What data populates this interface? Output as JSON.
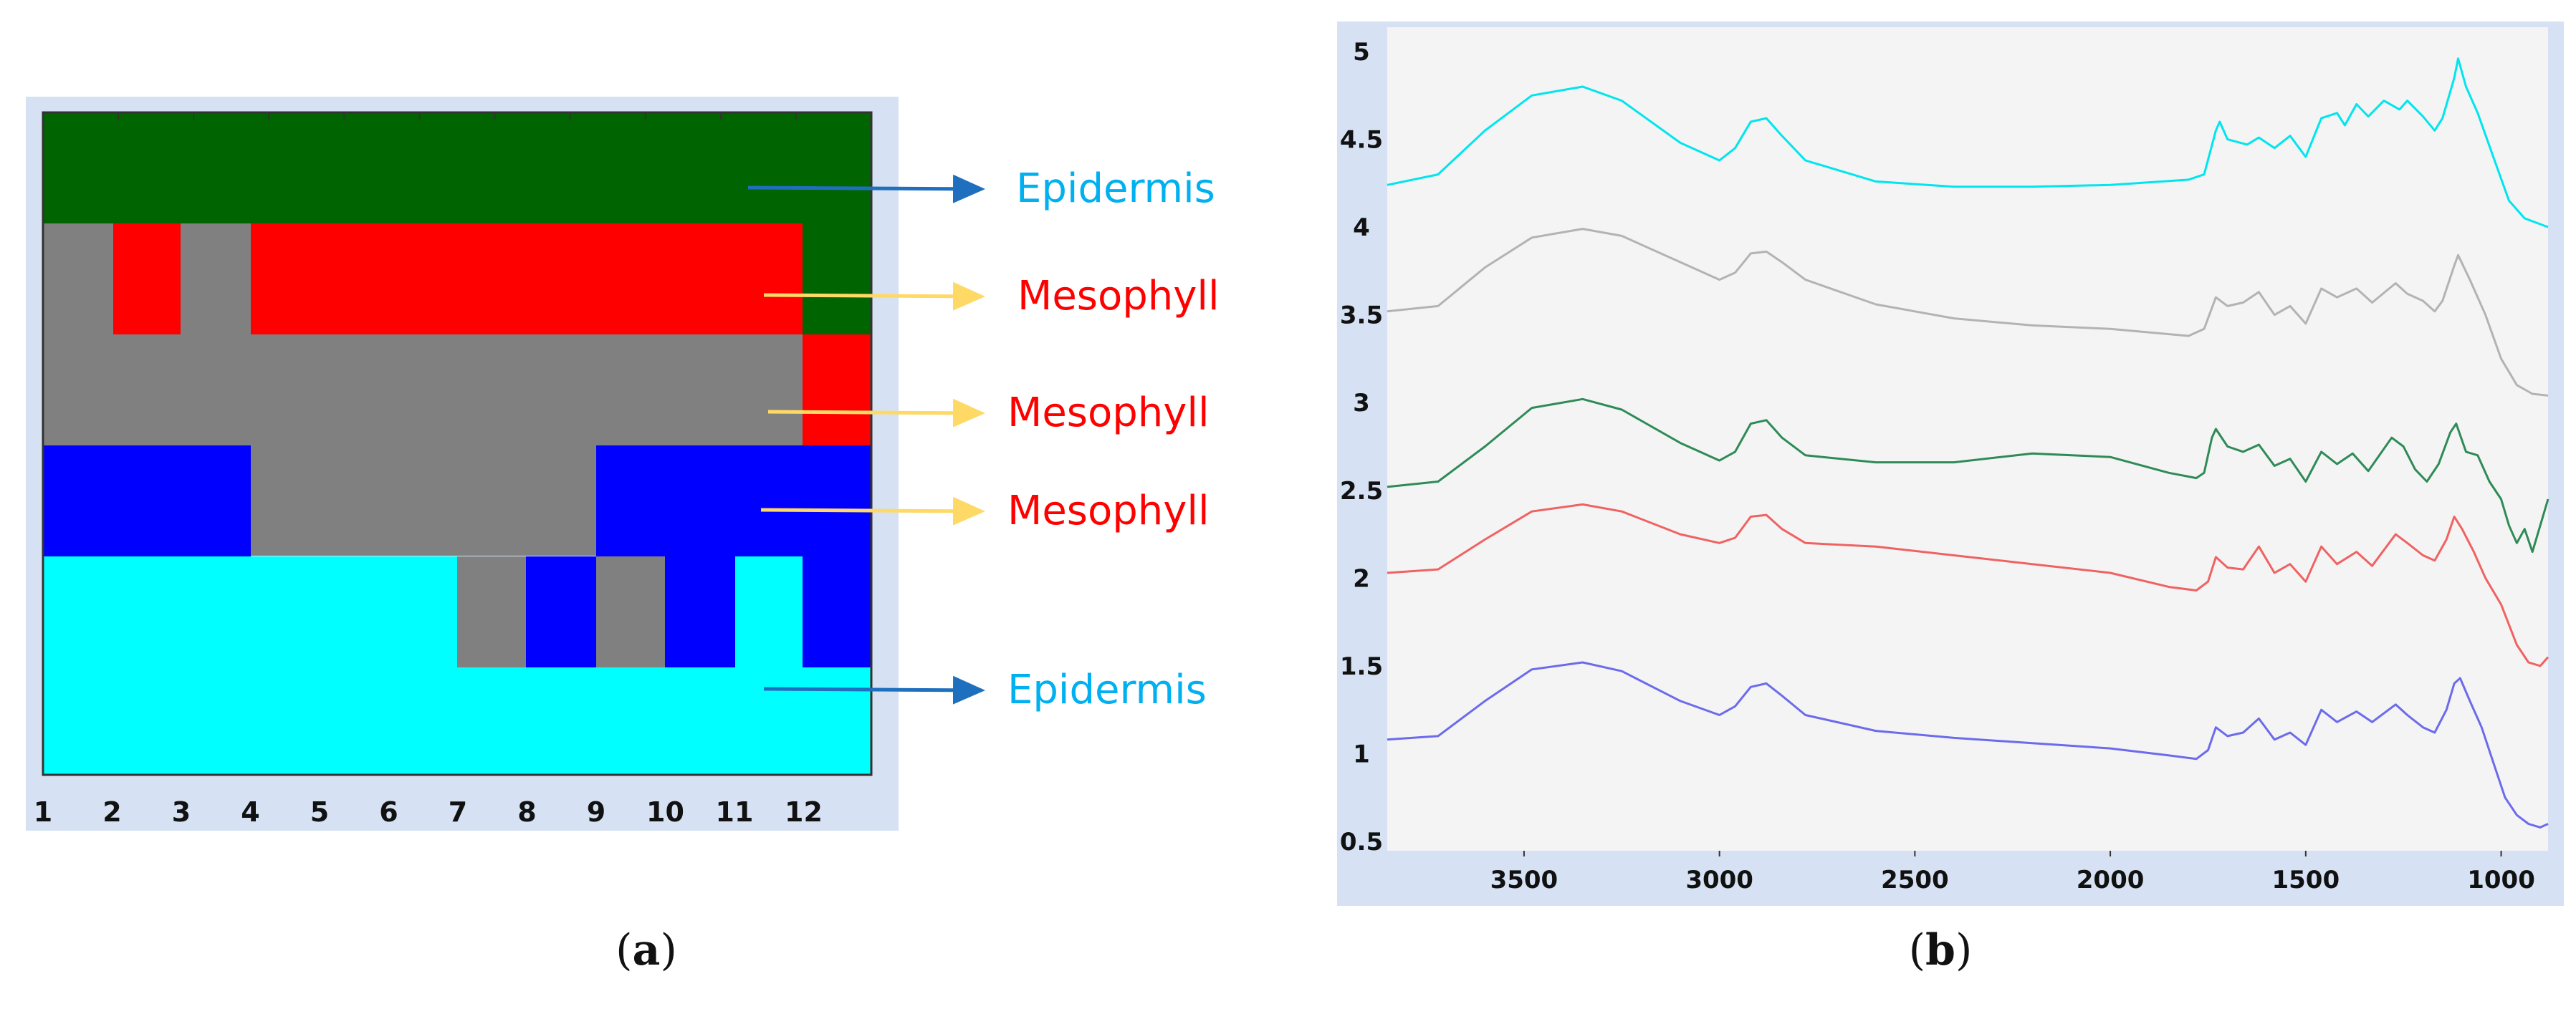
{
  "chart_data": [
    {
      "type": "heatmap",
      "caption": "a",
      "x_ticks": [
        "1",
        "2",
        "3",
        "4",
        "5",
        "6",
        "7",
        "8",
        "9",
        "10",
        "11",
        "12"
      ],
      "colors": {
        "dark_green": "#006400",
        "red": "#ff0000",
        "gray": "#808080",
        "blue": "#0000ff",
        "cyan": "#00ffff",
        "background": "#d6e2f3",
        "arrow_blue": "#1f6fbf",
        "arrow_yellow": "#ffd966",
        "epidermis_text": "#00b0f0",
        "mesophyll_text": "#ff0000"
      },
      "annotations": [
        {
          "label": "Epidermis",
          "color_key": "epidermis_text",
          "arrow_key": "arrow_blue"
        },
        {
          "label": "Mesophyll",
          "color_key": "mesophyll_text",
          "arrow_key": "arrow_yellow"
        },
        {
          "label": "Mesophyll",
          "color_key": "mesophyll_text",
          "arrow_key": "arrow_yellow"
        },
        {
          "label": "Mesophyll",
          "color_key": "mesophyll_text",
          "arrow_key": "arrow_yellow"
        },
        {
          "label": "Epidermis",
          "color_key": "epidermis_text",
          "arrow_key": "arrow_blue"
        }
      ]
    },
    {
      "type": "line",
      "caption": "b",
      "xlim": [
        3850,
        880
      ],
      "ylim": [
        0.5,
        5
      ],
      "x_ticks": [
        3500,
        3000,
        2500,
        2000,
        1500,
        1000
      ],
      "x_tick_labels": [
        "3500",
        "3000",
        "2500",
        "2000",
        "1500",
        "1000"
      ],
      "y_ticks": [
        5,
        4.5,
        4,
        3.5,
        3,
        2.5,
        2,
        1.5,
        1,
        0.5
      ],
      "y_tick_labels": [
        "5",
        "4.5",
        "4",
        "3.5",
        "3",
        "2.5",
        "2",
        "1.5",
        "1",
        "0.5"
      ],
      "series": [
        {
          "name": "cyan",
          "color": "#00e5ee",
          "points": [
            [
              3850,
              4.24
            ],
            [
              3720,
              4.3
            ],
            [
              3600,
              4.55
            ],
            [
              3480,
              4.75
            ],
            [
              3350,
              4.8
            ],
            [
              3250,
              4.72
            ],
            [
              3100,
              4.48
            ],
            [
              3000,
              4.38
            ],
            [
              2960,
              4.45
            ],
            [
              2920,
              4.6
            ],
            [
              2880,
              4.62
            ],
            [
              2840,
              4.52
            ],
            [
              2780,
              4.38
            ],
            [
              2600,
              4.26
            ],
            [
              2400,
              4.23
            ],
            [
              2200,
              4.23
            ],
            [
              2000,
              4.24
            ],
            [
              1800,
              4.27
            ],
            [
              1760,
              4.3
            ],
            [
              1730,
              4.55
            ],
            [
              1720,
              4.6
            ],
            [
              1700,
              4.5
            ],
            [
              1650,
              4.47
            ],
            [
              1620,
              4.51
            ],
            [
              1580,
              4.45
            ],
            [
              1540,
              4.52
            ],
            [
              1500,
              4.4
            ],
            [
              1460,
              4.62
            ],
            [
              1420,
              4.65
            ],
            [
              1400,
              4.58
            ],
            [
              1370,
              4.7
            ],
            [
              1340,
              4.63
            ],
            [
              1300,
              4.72
            ],
            [
              1260,
              4.67
            ],
            [
              1240,
              4.72
            ],
            [
              1200,
              4.63
            ],
            [
              1170,
              4.55
            ],
            [
              1150,
              4.62
            ],
            [
              1120,
              4.85
            ],
            [
              1110,
              4.96
            ],
            [
              1090,
              4.8
            ],
            [
              1060,
              4.65
            ],
            [
              1020,
              4.4
            ],
            [
              980,
              4.15
            ],
            [
              940,
              4.05
            ],
            [
              880,
              4.0
            ]
          ]
        },
        {
          "name": "gray",
          "color": "#b3b3b3",
          "points": [
            [
              3850,
              3.52
            ],
            [
              3720,
              3.55
            ],
            [
              3600,
              3.77
            ],
            [
              3480,
              3.94
            ],
            [
              3350,
              3.99
            ],
            [
              3250,
              3.95
            ],
            [
              3100,
              3.8
            ],
            [
              3000,
              3.7
            ],
            [
              2960,
              3.74
            ],
            [
              2920,
              3.85
            ],
            [
              2880,
              3.86
            ],
            [
              2840,
              3.8
            ],
            [
              2780,
              3.7
            ],
            [
              2600,
              3.56
            ],
            [
              2400,
              3.48
            ],
            [
              2200,
              3.44
            ],
            [
              2000,
              3.42
            ],
            [
              1800,
              3.38
            ],
            [
              1760,
              3.42
            ],
            [
              1730,
              3.6
            ],
            [
              1700,
              3.55
            ],
            [
              1660,
              3.57
            ],
            [
              1620,
              3.63
            ],
            [
              1580,
              3.5
            ],
            [
              1540,
              3.55
            ],
            [
              1500,
              3.45
            ],
            [
              1460,
              3.65
            ],
            [
              1420,
              3.6
            ],
            [
              1370,
              3.65
            ],
            [
              1330,
              3.57
            ],
            [
              1270,
              3.68
            ],
            [
              1240,
              3.62
            ],
            [
              1200,
              3.58
            ],
            [
              1170,
              3.52
            ],
            [
              1150,
              3.58
            ],
            [
              1120,
              3.78
            ],
            [
              1110,
              3.84
            ],
            [
              1080,
              3.7
            ],
            [
              1040,
              3.5
            ],
            [
              1000,
              3.25
            ],
            [
              960,
              3.1
            ],
            [
              920,
              3.05
            ],
            [
              880,
              3.04
            ]
          ]
        },
        {
          "name": "green",
          "color": "#2e8b57",
          "points": [
            [
              3850,
              2.52
            ],
            [
              3720,
              2.55
            ],
            [
              3600,
              2.75
            ],
            [
              3480,
              2.97
            ],
            [
              3350,
              3.02
            ],
            [
              3250,
              2.96
            ],
            [
              3100,
              2.77
            ],
            [
              3000,
              2.67
            ],
            [
              2960,
              2.72
            ],
            [
              2920,
              2.88
            ],
            [
              2880,
              2.9
            ],
            [
              2840,
              2.8
            ],
            [
              2780,
              2.7
            ],
            [
              2600,
              2.66
            ],
            [
              2400,
              2.66
            ],
            [
              2200,
              2.71
            ],
            [
              2000,
              2.69
            ],
            [
              1850,
              2.6
            ],
            [
              1780,
              2.57
            ],
            [
              1760,
              2.6
            ],
            [
              1740,
              2.8
            ],
            [
              1730,
              2.85
            ],
            [
              1700,
              2.75
            ],
            [
              1660,
              2.72
            ],
            [
              1620,
              2.76
            ],
            [
              1580,
              2.64
            ],
            [
              1540,
              2.68
            ],
            [
              1500,
              2.55
            ],
            [
              1460,
              2.72
            ],
            [
              1420,
              2.65
            ],
            [
              1380,
              2.71
            ],
            [
              1340,
              2.61
            ],
            [
              1280,
              2.8
            ],
            [
              1250,
              2.75
            ],
            [
              1220,
              2.62
            ],
            [
              1190,
              2.55
            ],
            [
              1160,
              2.65
            ],
            [
              1130,
              2.83
            ],
            [
              1115,
              2.88
            ],
            [
              1090,
              2.72
            ],
            [
              1060,
              2.7
            ],
            [
              1030,
              2.55
            ],
            [
              1000,
              2.45
            ],
            [
              980,
              2.3
            ],
            [
              960,
              2.2
            ],
            [
              940,
              2.28
            ],
            [
              920,
              2.15
            ],
            [
              900,
              2.3
            ],
            [
              880,
              2.45
            ]
          ]
        },
        {
          "name": "red",
          "color": "#f06262",
          "points": [
            [
              3850,
              2.03
            ],
            [
              3720,
              2.05
            ],
            [
              3600,
              2.22
            ],
            [
              3480,
              2.38
            ],
            [
              3350,
              2.42
            ],
            [
              3250,
              2.38
            ],
            [
              3100,
              2.25
            ],
            [
              3000,
              2.2
            ],
            [
              2960,
              2.23
            ],
            [
              2920,
              2.35
            ],
            [
              2880,
              2.36
            ],
            [
              2840,
              2.28
            ],
            [
              2780,
              2.2
            ],
            [
              2600,
              2.18
            ],
            [
              2400,
              2.13
            ],
            [
              2200,
              2.08
            ],
            [
              2000,
              2.03
            ],
            [
              1850,
              1.95
            ],
            [
              1780,
              1.93
            ],
            [
              1750,
              1.98
            ],
            [
              1730,
              2.12
            ],
            [
              1700,
              2.06
            ],
            [
              1660,
              2.05
            ],
            [
              1620,
              2.18
            ],
            [
              1580,
              2.03
            ],
            [
              1540,
              2.08
            ],
            [
              1500,
              1.98
            ],
            [
              1460,
              2.18
            ],
            [
              1420,
              2.08
            ],
            [
              1370,
              2.15
            ],
            [
              1330,
              2.07
            ],
            [
              1270,
              2.25
            ],
            [
              1240,
              2.2
            ],
            [
              1200,
              2.13
            ],
            [
              1170,
              2.1
            ],
            [
              1140,
              2.22
            ],
            [
              1120,
              2.35
            ],
            [
              1100,
              2.28
            ],
            [
              1070,
              2.15
            ],
            [
              1040,
              2.0
            ],
            [
              1000,
              1.85
            ],
            [
              960,
              1.62
            ],
            [
              930,
              1.52
            ],
            [
              900,
              1.5
            ],
            [
              880,
              1.55
            ]
          ]
        },
        {
          "name": "blue",
          "color": "#6b6bec",
          "points": [
            [
              3850,
              1.08
            ],
            [
              3720,
              1.1
            ],
            [
              3600,
              1.3
            ],
            [
              3480,
              1.48
            ],
            [
              3350,
              1.52
            ],
            [
              3250,
              1.47
            ],
            [
              3100,
              1.3
            ],
            [
              3000,
              1.22
            ],
            [
              2960,
              1.27
            ],
            [
              2920,
              1.38
            ],
            [
              2880,
              1.4
            ],
            [
              2840,
              1.33
            ],
            [
              2780,
              1.22
            ],
            [
              2600,
              1.13
            ],
            [
              2400,
              1.09
            ],
            [
              2200,
              1.06
            ],
            [
              2000,
              1.03
            ],
            [
              1850,
              0.99
            ],
            [
              1780,
              0.97
            ],
            [
              1750,
              1.02
            ],
            [
              1730,
              1.15
            ],
            [
              1700,
              1.1
            ],
            [
              1660,
              1.12
            ],
            [
              1620,
              1.2
            ],
            [
              1580,
              1.08
            ],
            [
              1540,
              1.12
            ],
            [
              1500,
              1.05
            ],
            [
              1460,
              1.25
            ],
            [
              1420,
              1.18
            ],
            [
              1370,
              1.24
            ],
            [
              1330,
              1.18
            ],
            [
              1270,
              1.28
            ],
            [
              1240,
              1.22
            ],
            [
              1200,
              1.15
            ],
            [
              1170,
              1.12
            ],
            [
              1140,
              1.25
            ],
            [
              1120,
              1.4
            ],
            [
              1105,
              1.43
            ],
            [
              1080,
              1.3
            ],
            [
              1050,
              1.15
            ],
            [
              1020,
              0.95
            ],
            [
              990,
              0.75
            ],
            [
              960,
              0.65
            ],
            [
              930,
              0.6
            ],
            [
              900,
              0.58
            ],
            [
              880,
              0.6
            ]
          ]
        }
      ]
    }
  ]
}
